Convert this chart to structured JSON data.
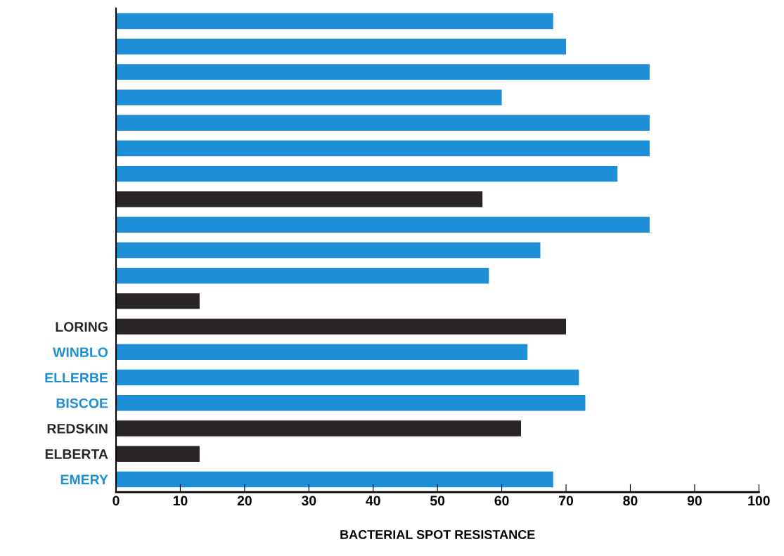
{
  "chart_data": {
    "type": "bar",
    "orientation": "horizontal",
    "xlabel": "BACTERIAL SPOT RESISTANCE",
    "categories": [
      null,
      null,
      null,
      null,
      null,
      null,
      null,
      null,
      null,
      null,
      null,
      null,
      "LORING",
      "WINBLO",
      "ELLERBE",
      "BISCOE",
      "REDSKIN",
      "ELBERTA",
      "EMERY"
    ],
    "values": [
      68,
      70,
      83,
      60,
      83,
      83,
      78,
      57,
      83,
      66,
      58,
      13,
      70,
      64,
      72,
      73,
      63,
      13,
      68
    ],
    "colors": [
      "#1e8fd6",
      "#1e8fd6",
      "#1e8fd6",
      "#1e8fd6",
      "#1e8fd6",
      "#1e8fd6",
      "#1e8fd6",
      "#2b2626",
      "#1e8fd6",
      "#1e8fd6",
      "#1e8fd6",
      "#2b2626",
      "#2b2626",
      "#1e8fd6",
      "#1e8fd6",
      "#1e8fd6",
      "#2b2626",
      "#2b2626",
      "#1e8fd6"
    ],
    "xlim": [
      0,
      100
    ],
    "xticks": [
      0,
      10,
      20,
      30,
      40,
      50,
      60,
      70,
      80,
      90,
      100
    ],
    "grid": false,
    "legend": false
  }
}
